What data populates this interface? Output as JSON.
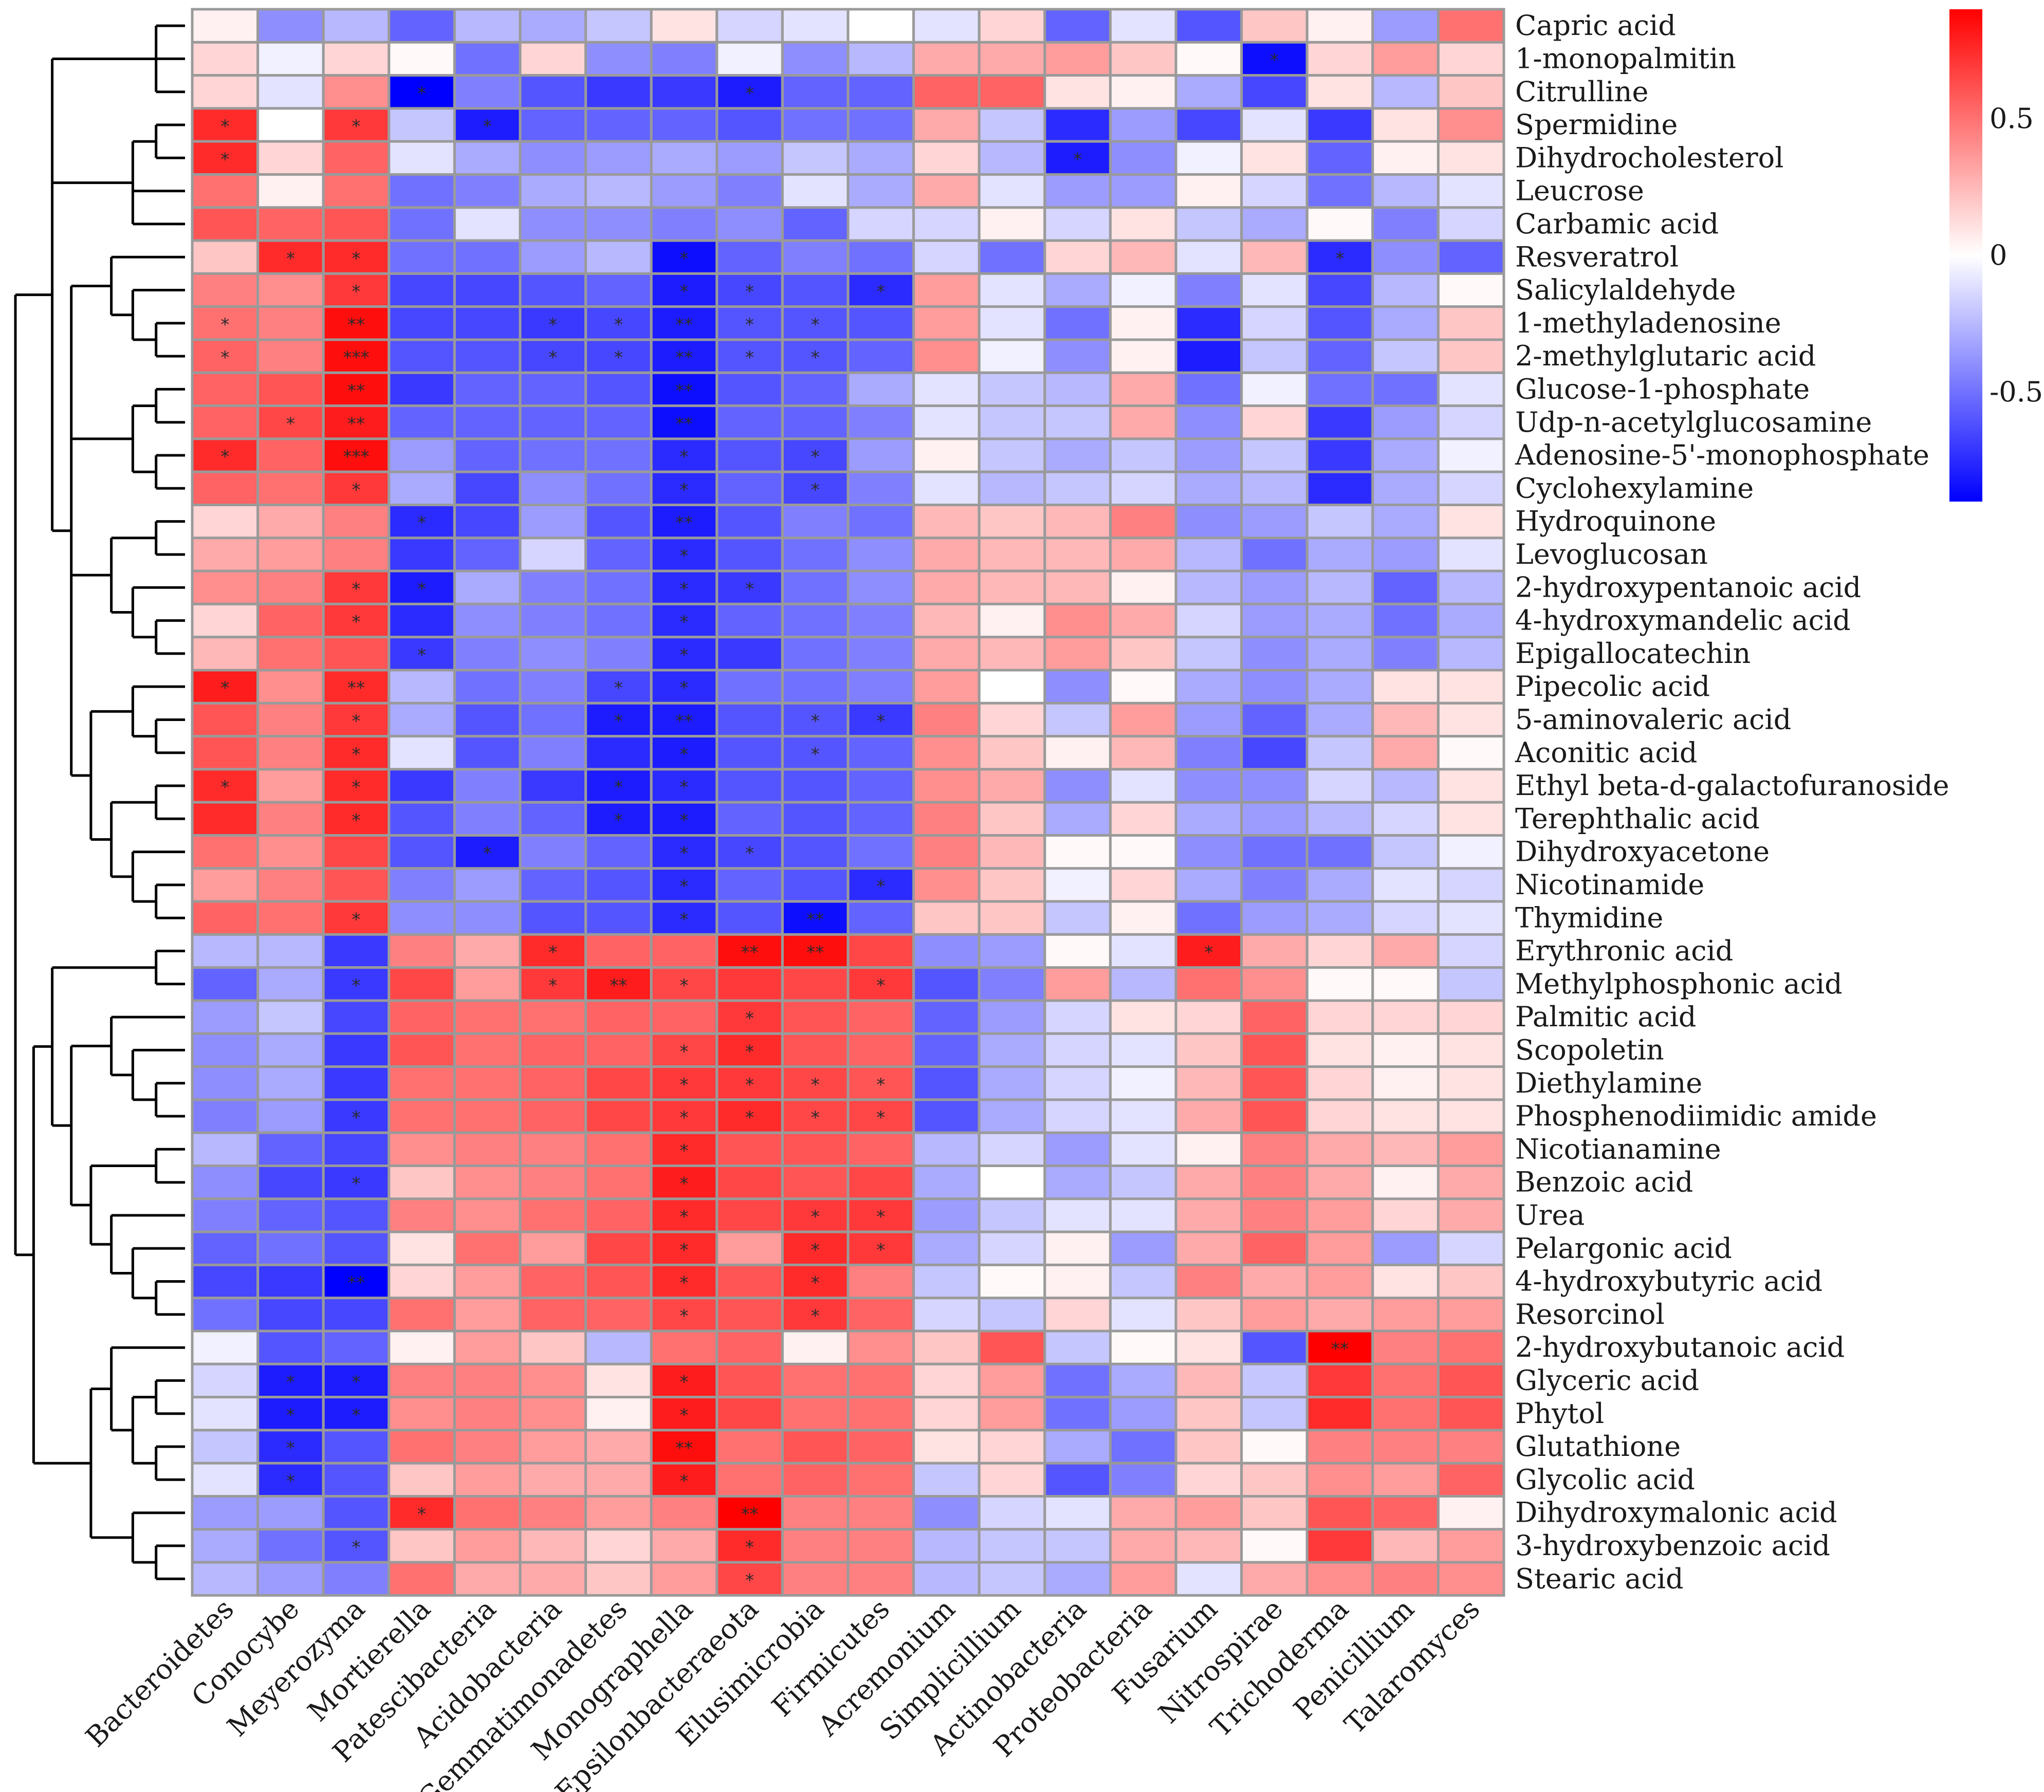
{
  "chart_data": {
    "type": "heatmap",
    "title": "",
    "columns": [
      "Bacteroidetes",
      "Conocybe",
      "Meyerozyma",
      "Mortierella",
      "Patescibacteria",
      "Acidobacteria",
      "Gemmatimonadetes",
      "Monographella",
      "Epsilonbacteraeota",
      "Elusimicrobia",
      "Firmicutes",
      "Acremonium",
      "Simplicillium",
      "Actinobacteria",
      "Proteobacteria",
      "Fusarium",
      "Nitrospirae",
      "Trichoderma",
      "Penicillium",
      "Talaromyces"
    ],
    "rows": [
      "Capric acid",
      "1-monopalmitin",
      "Citrulline",
      "Spermidine",
      "Dihydrocholesterol",
      "Leucrose",
      "Carbamic acid",
      "Resveratrol",
      "Salicylaldehyde",
      "1-methyladenosine",
      "2-methylglutaric acid",
      "Glucose-1-phosphate",
      "Udp-n-acetylglucosamine",
      "Adenosine-5'-monophosphate",
      "Cyclohexylamine",
      "Hydroquinone",
      "Levoglucosan",
      "2-hydroxypentanoic acid",
      "4-hydroxymandelic acid",
      "Epigallocatechin",
      "Pipecolic acid",
      "5-aminovaleric acid",
      "Aconitic acid",
      "Ethyl beta-d-galactofuranoside",
      "Terephthalic acid",
      "Dihydroxyacetone",
      "Nicotinamide",
      "Thymidine",
      "Erythronic acid",
      "Methylphosphonic acid",
      "Palmitic acid",
      "Scopoletin",
      "Diethylamine",
      "Phosphenodiimidic amide",
      "Nicotianamine",
      "Benzoic acid",
      "Urea",
      "Pelargonic acid",
      "4-hydroxybutyric acid",
      "Resorcinol",
      "2-hydroxybutanoic acid",
      "Glyceric acid",
      "Phytol",
      "Glutathione",
      "Glycolic acid",
      "Dihydroxymalonic acid",
      "3-hydroxybenzoic acid",
      "Stearic acid"
    ],
    "values": [
      [
        0.05,
        -0.4,
        -0.25,
        -0.55,
        -0.25,
        -0.3,
        -0.2,
        0.1,
        -0.15,
        -0.1,
        0,
        -0.1,
        0.15,
        -0.55,
        -0.1,
        -0.6,
        0.2,
        0.05,
        -0.35,
        0.5
      ],
      [
        0.15,
        -0.05,
        0.15,
        0.02,
        -0.5,
        0.15,
        -0.4,
        -0.45,
        -0.05,
        -0.4,
        -0.25,
        0.3,
        0.3,
        0.35,
        0.2,
        0.02,
        -0.85,
        0.15,
        0.35,
        0.15
      ],
      [
        0.15,
        -0.1,
        0.4,
        -0.9,
        -0.45,
        -0.6,
        -0.7,
        -0.7,
        -0.8,
        -0.55,
        -0.55,
        0.55,
        0.55,
        0.1,
        0.05,
        -0.3,
        -0.65,
        0.1,
        -0.25,
        0.2
      ],
      [
        0.75,
        0,
        0.7,
        -0.2,
        -0.8,
        -0.55,
        -0.55,
        -0.55,
        -0.6,
        -0.5,
        -0.5,
        0.3,
        -0.2,
        -0.75,
        -0.35,
        -0.65,
        -0.1,
        -0.7,
        0.1,
        0.4
      ],
      [
        0.75,
        0.15,
        0.55,
        -0.1,
        -0.3,
        -0.4,
        -0.35,
        -0.3,
        -0.35,
        -0.2,
        -0.3,
        0.15,
        -0.25,
        -0.8,
        -0.4,
        -0.05,
        0.1,
        -0.55,
        0.05,
        0.1
      ],
      [
        0.5,
        0.05,
        0.5,
        -0.5,
        -0.45,
        -0.3,
        -0.25,
        -0.35,
        -0.45,
        -0.1,
        -0.3,
        0.3,
        -0.1,
        -0.35,
        -0.35,
        0.05,
        -0.15,
        -0.5,
        -0.25,
        -0.1
      ],
      [
        0.6,
        0.55,
        0.6,
        -0.5,
        -0.1,
        -0.4,
        -0.4,
        -0.45,
        -0.4,
        -0.55,
        -0.15,
        -0.15,
        0.05,
        -0.15,
        0.1,
        -0.2,
        -0.3,
        0.02,
        -0.45,
        -0.15
      ],
      [
        0.2,
        0.75,
        0.75,
        -0.5,
        -0.5,
        -0.35,
        -0.25,
        -0.85,
        -0.55,
        -0.45,
        -0.5,
        -0.15,
        -0.5,
        0.15,
        0.25,
        -0.1,
        0.25,
        -0.75,
        -0.4,
        -0.55
      ],
      [
        0.45,
        0.4,
        0.7,
        -0.65,
        -0.65,
        -0.6,
        -0.55,
        -0.8,
        -0.65,
        -0.6,
        -0.75,
        0.35,
        -0.1,
        -0.3,
        -0.05,
        -0.45,
        -0.1,
        -0.65,
        -0.25,
        0.02
      ],
      [
        0.5,
        0.45,
        0.85,
        -0.65,
        -0.65,
        -0.7,
        -0.65,
        -0.8,
        -0.6,
        -0.6,
        -0.6,
        0.35,
        -0.1,
        -0.5,
        0.05,
        -0.75,
        -0.15,
        -0.6,
        -0.3,
        0.2
      ],
      [
        0.55,
        0.45,
        0.85,
        -0.6,
        -0.6,
        -0.65,
        -0.65,
        -0.8,
        -0.6,
        -0.6,
        -0.55,
        0.4,
        -0.05,
        -0.4,
        0.05,
        -0.8,
        -0.2,
        -0.55,
        -0.2,
        0.2
      ],
      [
        0.55,
        0.6,
        0.85,
        -0.7,
        -0.55,
        -0.55,
        -0.6,
        -0.85,
        -0.6,
        -0.55,
        -0.3,
        -0.1,
        -0.2,
        -0.25,
        0.3,
        -0.5,
        -0.05,
        -0.5,
        -0.5,
        -0.1
      ],
      [
        0.55,
        0.65,
        0.8,
        -0.55,
        -0.55,
        -0.55,
        -0.55,
        -0.85,
        -0.55,
        -0.55,
        -0.45,
        -0.1,
        -0.2,
        -0.2,
        0.3,
        -0.4,
        0.15,
        -0.7,
        -0.35,
        -0.15
      ],
      [
        0.75,
        0.55,
        0.85,
        -0.35,
        -0.55,
        -0.5,
        -0.5,
        -0.75,
        -0.6,
        -0.65,
        -0.35,
        0.05,
        -0.2,
        -0.3,
        -0.2,
        -0.35,
        -0.2,
        -0.7,
        -0.3,
        -0.05
      ],
      [
        0.55,
        0.5,
        0.7,
        -0.3,
        -0.65,
        -0.4,
        -0.5,
        -0.75,
        -0.55,
        -0.65,
        -0.45,
        -0.1,
        -0.25,
        -0.2,
        -0.15,
        -0.3,
        -0.25,
        -0.75,
        -0.3,
        -0.15
      ],
      [
        0.15,
        0.3,
        0.45,
        -0.75,
        -0.65,
        -0.35,
        -0.6,
        -0.8,
        -0.6,
        -0.45,
        -0.5,
        0.25,
        0.2,
        0.25,
        0.45,
        -0.4,
        -0.35,
        -0.2,
        -0.3,
        0.1
      ],
      [
        0.3,
        0.35,
        0.45,
        -0.7,
        -0.55,
        -0.15,
        -0.55,
        -0.75,
        -0.6,
        -0.5,
        -0.4,
        0.3,
        0.25,
        0.25,
        0.3,
        -0.25,
        -0.5,
        -0.3,
        -0.35,
        -0.1
      ],
      [
        0.4,
        0.45,
        0.7,
        -0.8,
        -0.3,
        -0.45,
        -0.5,
        -0.75,
        -0.7,
        -0.5,
        -0.4,
        0.3,
        0.25,
        0.25,
        0.05,
        -0.25,
        -0.35,
        -0.25,
        -0.55,
        -0.25
      ],
      [
        0.15,
        0.55,
        0.7,
        -0.75,
        -0.4,
        -0.45,
        -0.5,
        -0.75,
        -0.55,
        -0.5,
        -0.45,
        0.25,
        0.05,
        0.4,
        0.3,
        -0.15,
        -0.35,
        -0.3,
        -0.5,
        -0.3
      ],
      [
        0.25,
        0.5,
        0.6,
        -0.7,
        -0.45,
        -0.4,
        -0.45,
        -0.75,
        -0.7,
        -0.5,
        -0.45,
        0.3,
        0.25,
        0.35,
        0.2,
        -0.2,
        -0.4,
        -0.3,
        -0.45,
        -0.25
      ],
      [
        0.8,
        0.4,
        0.75,
        -0.25,
        -0.5,
        -0.45,
        -0.65,
        -0.75,
        -0.5,
        -0.5,
        -0.45,
        0.35,
        0,
        -0.4,
        0.02,
        -0.3,
        -0.4,
        -0.3,
        0.1,
        0.1
      ],
      [
        0.6,
        0.45,
        0.7,
        -0.3,
        -0.6,
        -0.5,
        -0.8,
        -0.8,
        -0.6,
        -0.6,
        -0.7,
        0.45,
        0.15,
        -0.2,
        0.35,
        -0.35,
        -0.55,
        -0.3,
        0.25,
        0.1
      ],
      [
        0.6,
        0.45,
        0.75,
        -0.1,
        -0.6,
        -0.45,
        -0.75,
        -0.8,
        -0.6,
        -0.6,
        -0.55,
        0.4,
        0.2,
        0.05,
        0.25,
        -0.45,
        -0.65,
        -0.2,
        0.3,
        0.02
      ],
      [
        0.75,
        0.35,
        0.75,
        -0.7,
        -0.45,
        -0.7,
        -0.8,
        -0.75,
        -0.6,
        -0.6,
        -0.55,
        0.4,
        0.3,
        -0.4,
        -0.1,
        -0.4,
        -0.4,
        -0.15,
        -0.25,
        0.1
      ],
      [
        0.75,
        0.45,
        0.75,
        -0.6,
        -0.45,
        -0.55,
        -0.8,
        -0.8,
        -0.55,
        -0.6,
        -0.55,
        0.45,
        0.2,
        -0.3,
        0.15,
        -0.3,
        -0.35,
        -0.25,
        -0.15,
        0.1
      ],
      [
        0.5,
        0.4,
        0.65,
        -0.6,
        -0.8,
        -0.45,
        -0.55,
        -0.75,
        -0.65,
        -0.6,
        -0.5,
        0.45,
        0.25,
        0.02,
        0.02,
        -0.4,
        -0.5,
        -0.5,
        -0.2,
        -0.05
      ],
      [
        0.35,
        0.45,
        0.6,
        -0.45,
        -0.35,
        -0.55,
        -0.6,
        -0.75,
        -0.55,
        -0.6,
        -0.75,
        0.4,
        0.2,
        -0.05,
        0.15,
        -0.3,
        -0.45,
        -0.3,
        -0.1,
        -0.15
      ],
      [
        0.55,
        0.5,
        0.7,
        -0.4,
        -0.4,
        -0.6,
        -0.6,
        -0.75,
        -0.6,
        -0.85,
        -0.55,
        0.2,
        0.2,
        -0.2,
        0.05,
        -0.5,
        -0.35,
        -0.3,
        -0.15,
        -0.1
      ],
      [
        -0.25,
        -0.25,
        -0.7,
        0.45,
        0.3,
        0.75,
        0.55,
        0.55,
        0.85,
        0.85,
        0.65,
        -0.4,
        -0.35,
        0.02,
        -0.1,
        0.8,
        0.3,
        0.15,
        0.3,
        -0.15
      ],
      [
        -0.55,
        -0.3,
        -0.7,
        0.65,
        0.35,
        0.7,
        0.8,
        0.65,
        0.7,
        0.65,
        0.7,
        -0.6,
        -0.45,
        0.35,
        -0.25,
        0.5,
        0.4,
        0.02,
        0.02,
        -0.2
      ],
      [
        -0.35,
        -0.2,
        -0.65,
        0.55,
        0.5,
        0.5,
        0.55,
        0.55,
        0.7,
        0.6,
        0.55,
        -0.55,
        -0.35,
        -0.15,
        0.1,
        0.15,
        0.55,
        0.15,
        0.15,
        0.15
      ],
      [
        -0.4,
        -0.3,
        -0.7,
        0.6,
        0.5,
        0.55,
        0.55,
        0.65,
        0.75,
        0.6,
        0.55,
        -0.55,
        -0.3,
        -0.15,
        -0.1,
        0.2,
        0.6,
        0.1,
        0.05,
        0.1
      ],
      [
        -0.4,
        -0.3,
        -0.7,
        0.5,
        0.5,
        0.55,
        0.65,
        0.7,
        0.7,
        0.65,
        0.6,
        -0.6,
        -0.3,
        -0.15,
        -0.05,
        0.25,
        0.6,
        0.15,
        0.05,
        0.1
      ],
      [
        -0.45,
        -0.35,
        -0.7,
        0.5,
        0.5,
        0.55,
        0.65,
        0.7,
        0.75,
        0.65,
        0.65,
        -0.6,
        -0.3,
        -0.15,
        -0.1,
        0.3,
        0.6,
        0.15,
        0.1,
        0.1
      ],
      [
        -0.25,
        -0.55,
        -0.65,
        0.4,
        0.45,
        0.45,
        0.5,
        0.75,
        0.6,
        0.6,
        0.55,
        -0.25,
        -0.15,
        -0.35,
        -0.1,
        0.05,
        0.45,
        0.3,
        0.25,
        0.35
      ],
      [
        -0.4,
        -0.65,
        -0.7,
        0.2,
        0.4,
        0.45,
        0.5,
        0.8,
        0.65,
        0.6,
        0.65,
        -0.3,
        0,
        -0.3,
        -0.2,
        0.3,
        0.45,
        0.3,
        0.05,
        0.3
      ],
      [
        -0.45,
        -0.55,
        -0.6,
        0.45,
        0.4,
        0.5,
        0.55,
        0.75,
        0.65,
        0.7,
        0.7,
        -0.35,
        -0.2,
        -0.1,
        -0.1,
        0.3,
        0.45,
        0.35,
        0.15,
        0.3
      ],
      [
        -0.55,
        -0.5,
        -0.6,
        0.1,
        0.5,
        0.35,
        0.65,
        0.75,
        0.35,
        0.75,
        0.7,
        -0.3,
        -0.15,
        0.05,
        -0.35,
        0.3,
        0.55,
        0.35,
        -0.35,
        -0.15
      ],
      [
        -0.65,
        -0.7,
        -0.9,
        0.15,
        0.35,
        0.55,
        0.6,
        0.75,
        0.6,
        0.75,
        0.45,
        -0.2,
        0.02,
        0.05,
        -0.2,
        0.45,
        0.3,
        0.35,
        0.1,
        0.2
      ],
      [
        -0.5,
        -0.65,
        -0.65,
        0.5,
        0.35,
        0.55,
        0.55,
        0.65,
        0.6,
        0.7,
        0.55,
        -0.15,
        -0.2,
        0.15,
        -0.1,
        0.2,
        0.35,
        0.3,
        0.35,
        0.35
      ],
      [
        -0.05,
        -0.6,
        -0.55,
        0.05,
        0.35,
        0.2,
        -0.25,
        0.5,
        0.55,
        0.05,
        0.4,
        0.2,
        0.6,
        -0.2,
        0.02,
        0.1,
        -0.6,
        0.9,
        0.45,
        0.5
      ],
      [
        -0.15,
        -0.8,
        -0.8,
        0.45,
        0.45,
        0.4,
        0.1,
        0.8,
        0.6,
        0.5,
        0.5,
        0.15,
        0.35,
        -0.5,
        -0.3,
        0.25,
        -0.2,
        0.7,
        0.5,
        0.6
      ],
      [
        -0.1,
        -0.8,
        -0.8,
        0.4,
        0.45,
        0.4,
        0.05,
        0.8,
        0.65,
        0.5,
        0.5,
        0.15,
        0.35,
        -0.5,
        -0.35,
        0.2,
        -0.2,
        0.75,
        0.5,
        0.6
      ],
      [
        -0.2,
        -0.75,
        -0.6,
        0.5,
        0.45,
        0.35,
        0.3,
        0.85,
        0.5,
        0.6,
        0.55,
        0.1,
        0.15,
        -0.3,
        -0.5,
        0.2,
        0.02,
        0.45,
        0.45,
        0.45
      ],
      [
        -0.1,
        -0.75,
        -0.6,
        0.2,
        0.35,
        0.3,
        0.3,
        0.8,
        0.5,
        0.55,
        0.5,
        -0.2,
        0.15,
        -0.6,
        -0.45,
        0.15,
        0.2,
        0.4,
        0.35,
        0.55
      ],
      [
        -0.35,
        -0.35,
        -0.6,
        0.75,
        0.5,
        0.45,
        0.35,
        0.45,
        0.9,
        0.45,
        0.45,
        -0.4,
        -0.15,
        -0.1,
        0.3,
        0.35,
        0.2,
        0.6,
        0.55,
        0.05
      ],
      [
        -0.3,
        -0.5,
        -0.6,
        0.2,
        0.35,
        0.25,
        0.15,
        0.3,
        0.75,
        0.45,
        0.45,
        -0.25,
        -0.2,
        -0.2,
        0.3,
        0.25,
        0.02,
        0.7,
        0.25,
        0.35
      ],
      [
        -0.25,
        -0.35,
        -0.45,
        0.5,
        0.3,
        0.3,
        0.2,
        0.35,
        0.65,
        0.45,
        0.45,
        -0.25,
        -0.2,
        -0.3,
        0.35,
        -0.1,
        0.3,
        0.4,
        0.45,
        0.4
      ]
    ],
    "significance": {
      "0": {
        "0": ""
      },
      "1": {
        "16": "*"
      },
      "2": {
        "3": "*",
        "8": "*"
      },
      "3": {
        "0": "*",
        "2": "*",
        "4": "*"
      },
      "4": {
        "0": "*",
        "13": "*"
      },
      "7": {
        "1": "*",
        "2": "*",
        "7": "*",
        "17": "*"
      },
      "8": {
        "2": "*",
        "7": "*",
        "8": "*",
        "10": "*"
      },
      "9": {
        "0": "*",
        "2": "**",
        "5": "*",
        "6": "*",
        "7": "**",
        "8": "*",
        "9": "*"
      },
      "10": {
        "0": "*",
        "2": "***",
        "5": "*",
        "6": "*",
        "7": "**",
        "8": "*",
        "9": "*"
      },
      "11": {
        "2": "**",
        "7": "**"
      },
      "12": {
        "1": "*",
        "2": "**",
        "7": "**"
      },
      "13": {
        "0": "*",
        "2": "***",
        "7": "*",
        "9": "*"
      },
      "14": {
        "2": "*",
        "7": "*",
        "9": "*"
      },
      "15": {
        "3": "*",
        "7": "**"
      },
      "16": {
        "7": "*"
      },
      "17": {
        "2": "*",
        "3": "*",
        "7": "*",
        "8": "*"
      },
      "18": {
        "2": "*",
        "7": "*"
      },
      "19": {
        "3": "*",
        "7": "*"
      },
      "20": {
        "0": "*",
        "2": "**",
        "6": "*",
        "7": "*"
      },
      "21": {
        "2": "*",
        "6": "*",
        "7": "**",
        "9": "*",
        "10": "*"
      },
      "22": {
        "2": "*",
        "7": "*",
        "9": "*"
      },
      "23": {
        "0": "*",
        "2": "*",
        "6": "*",
        "7": "*"
      },
      "24": {
        "2": "*",
        "6": "*",
        "7": "*"
      },
      "25": {
        "4": "*",
        "7": "*",
        "8": "*"
      },
      "26": {
        "7": "*",
        "10": "*"
      },
      "27": {
        "2": "*",
        "7": "*",
        "9": "**"
      },
      "28": {
        "5": "*",
        "8": "**",
        "9": "**",
        "15": "*"
      },
      "29": {
        "2": "*",
        "5": "*",
        "6": "**",
        "7": "*",
        "10": "*"
      },
      "30": {
        "8": "*"
      },
      "31": {
        "7": "*",
        "8": "*"
      },
      "32": {
        "7": "*",
        "8": "*",
        "9": "*",
        "10": "*"
      },
      "33": {
        "2": "*",
        "7": "*",
        "8": "*",
        "9": "*",
        "10": "*"
      },
      "34": {
        "7": "*"
      },
      "35": {
        "2": "*",
        "7": "*"
      },
      "36": {
        "7": "*",
        "9": "*",
        "10": "*"
      },
      "37": {
        "7": "*",
        "9": "*",
        "10": "*"
      },
      "38": {
        "2": "**",
        "7": "*",
        "9": "*"
      },
      "39": {
        "7": "*",
        "9": "*"
      },
      "40": {
        "17": "**"
      },
      "41": {
        "1": "*",
        "2": "*",
        "7": "*"
      },
      "42": {
        "1": "*",
        "2": "*",
        "7": "*"
      },
      "43": {
        "1": "*",
        "7": "**"
      },
      "44": {
        "1": "*",
        "7": "*"
      },
      "45": {
        "3": "*",
        "8": "**"
      },
      "46": {
        "2": "*",
        "8": "*"
      },
      "47": {
        "8": "*"
      }
    },
    "color_scale": {
      "low": "#0000ff",
      "mid": "#ffffff",
      "high": "#ff0000",
      "range": [
        -0.9,
        0.9
      ]
    },
    "legend_ticks": [
      {
        "value": 0.5,
        "label": "0.5"
      },
      {
        "value": 0,
        "label": "0"
      },
      {
        "value": -0.5,
        "label": "-0.5"
      }
    ],
    "xlabel": "",
    "ylabel": ""
  }
}
